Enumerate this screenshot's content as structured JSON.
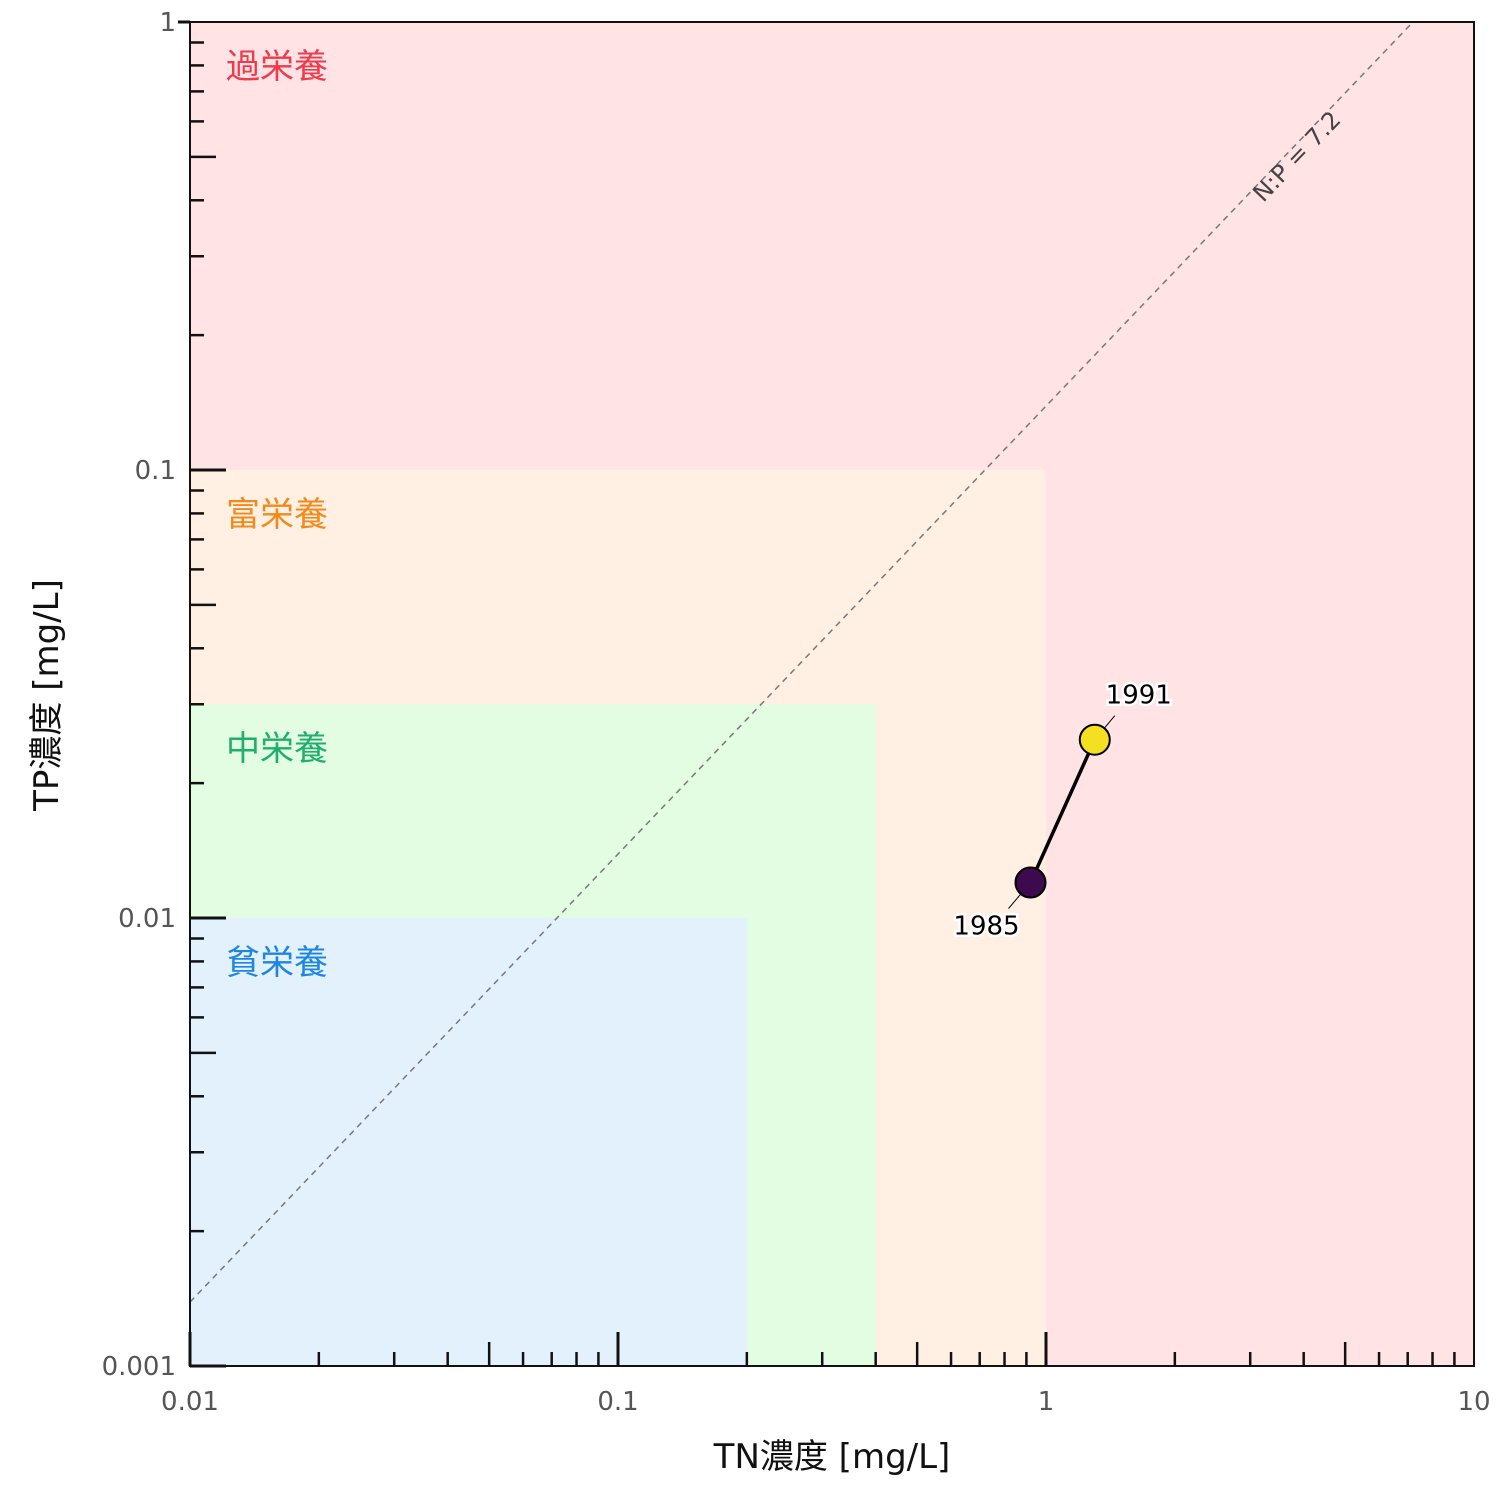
{
  "chart_data": {
    "type": "scatter",
    "x_scale": "log",
    "y_scale": "log",
    "xlabel": "TN濃度 [mg/L]",
    "ylabel": "TP濃度 [mg/L]",
    "xlim": [
      0.01,
      10
    ],
    "ylim": [
      0.001,
      1
    ],
    "x_ticks": [
      {
        "value": 0.01,
        "label": "0.01"
      },
      {
        "value": 0.1,
        "label": "0.1"
      },
      {
        "value": 1,
        "label": "1"
      },
      {
        "value": 10,
        "label": "10"
      }
    ],
    "y_ticks": [
      {
        "value": 0.001,
        "label": "0.001"
      },
      {
        "value": 0.01,
        "label": "0.01"
      },
      {
        "value": 0.1,
        "label": "0.1"
      },
      {
        "value": 1,
        "label": "1"
      }
    ],
    "grid": false,
    "zones": [
      {
        "name": "過栄養",
        "tn_max": 10,
        "tp_max": 1,
        "fill": "#ffe3e5",
        "label_color": "#ee3a4a"
      },
      {
        "name": "富栄養",
        "tn_max": 1,
        "tp_max": 0.1,
        "fill": "#fff0e3",
        "label_color": "#f08a1c"
      },
      {
        "name": "中栄養",
        "tn_max": 0.4,
        "tp_max": 0.03,
        "fill": "#e3fde3",
        "label_color": "#1fae6e"
      },
      {
        "name": "貧栄養",
        "tn_max": 0.2,
        "tp_max": 0.01,
        "fill": "#e3f1fd",
        "label_color": "#1e86e0"
      }
    ],
    "ratio_line": {
      "label": "N:P = 7.2",
      "ratio": 7.2,
      "color": "#777777",
      "style": "dashed"
    },
    "series": [
      {
        "points": [
          {
            "label": "1985",
            "x": 0.92,
            "y": 0.012,
            "color": "#3d0a4f"
          },
          {
            "label": "1991",
            "x": 1.3,
            "y": 0.025,
            "color": "#f4e020"
          }
        ],
        "line_color": "#000000"
      }
    ]
  }
}
